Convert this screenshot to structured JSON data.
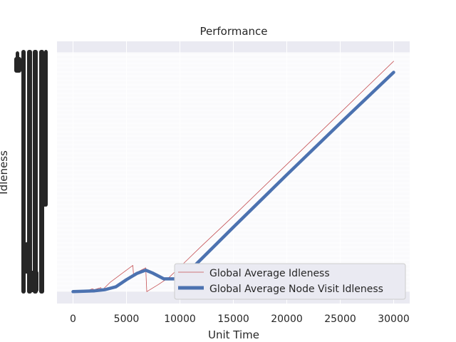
{
  "chart_data": {
    "type": "line",
    "title": "Performance",
    "xlabel": "Unit Time",
    "ylabel": "Idleness",
    "xlim": [
      -1500,
      31500
    ],
    "ylim": [
      -1500,
      31500
    ],
    "x_ticks": [
      0,
      5000,
      10000,
      15000,
      20000,
      25000,
      30000
    ],
    "x_tick_labels": [
      "0",
      "5000",
      "10000",
      "15000",
      "20000",
      "25000",
      "30000"
    ],
    "y_tick_labels": "illegible overlapping dense labels",
    "grid": true,
    "legend_position": "lower-right",
    "series": [
      {
        "name": "Global Average Idleness",
        "color": "#c44e52",
        "style": "thin",
        "points": [
          [
            0,
            0
          ],
          [
            500,
            100
          ],
          [
            1000,
            150
          ],
          [
            1500,
            200
          ],
          [
            1800,
            350
          ],
          [
            2000,
            250
          ],
          [
            2600,
            500
          ],
          [
            2700,
            150
          ],
          [
            3500,
            1200
          ],
          [
            4500,
            2200
          ],
          [
            5500,
            3200
          ],
          [
            5600,
            3300
          ],
          [
            5650,
            2200
          ],
          [
            6800,
            3000
          ],
          [
            6900,
            0
          ],
          [
            8000,
            900
          ],
          [
            9000,
            1800
          ],
          [
            10000,
            3100
          ],
          [
            12000,
            5700
          ],
          [
            15000,
            9500
          ],
          [
            20000,
            16000
          ],
          [
            25000,
            22500
          ],
          [
            30000,
            29000
          ]
        ]
      },
      {
        "name": "Global Average Node Visit Idleness",
        "color": "#4c72b0",
        "style": "thick",
        "points": [
          [
            0,
            0
          ],
          [
            1000,
            50
          ],
          [
            2000,
            100
          ],
          [
            3000,
            250
          ],
          [
            4000,
            600
          ],
          [
            5000,
            1500
          ],
          [
            6000,
            2300
          ],
          [
            6800,
            2700
          ],
          [
            7500,
            2300
          ],
          [
            8500,
            1600
          ],
          [
            9500,
            1600
          ],
          [
            10000,
            1700
          ],
          [
            10500,
            2100
          ],
          [
            12000,
            4100
          ],
          [
            15000,
            8100
          ],
          [
            20000,
            14700
          ],
          [
            25000,
            21200
          ],
          [
            30000,
            27600
          ]
        ]
      }
    ]
  }
}
